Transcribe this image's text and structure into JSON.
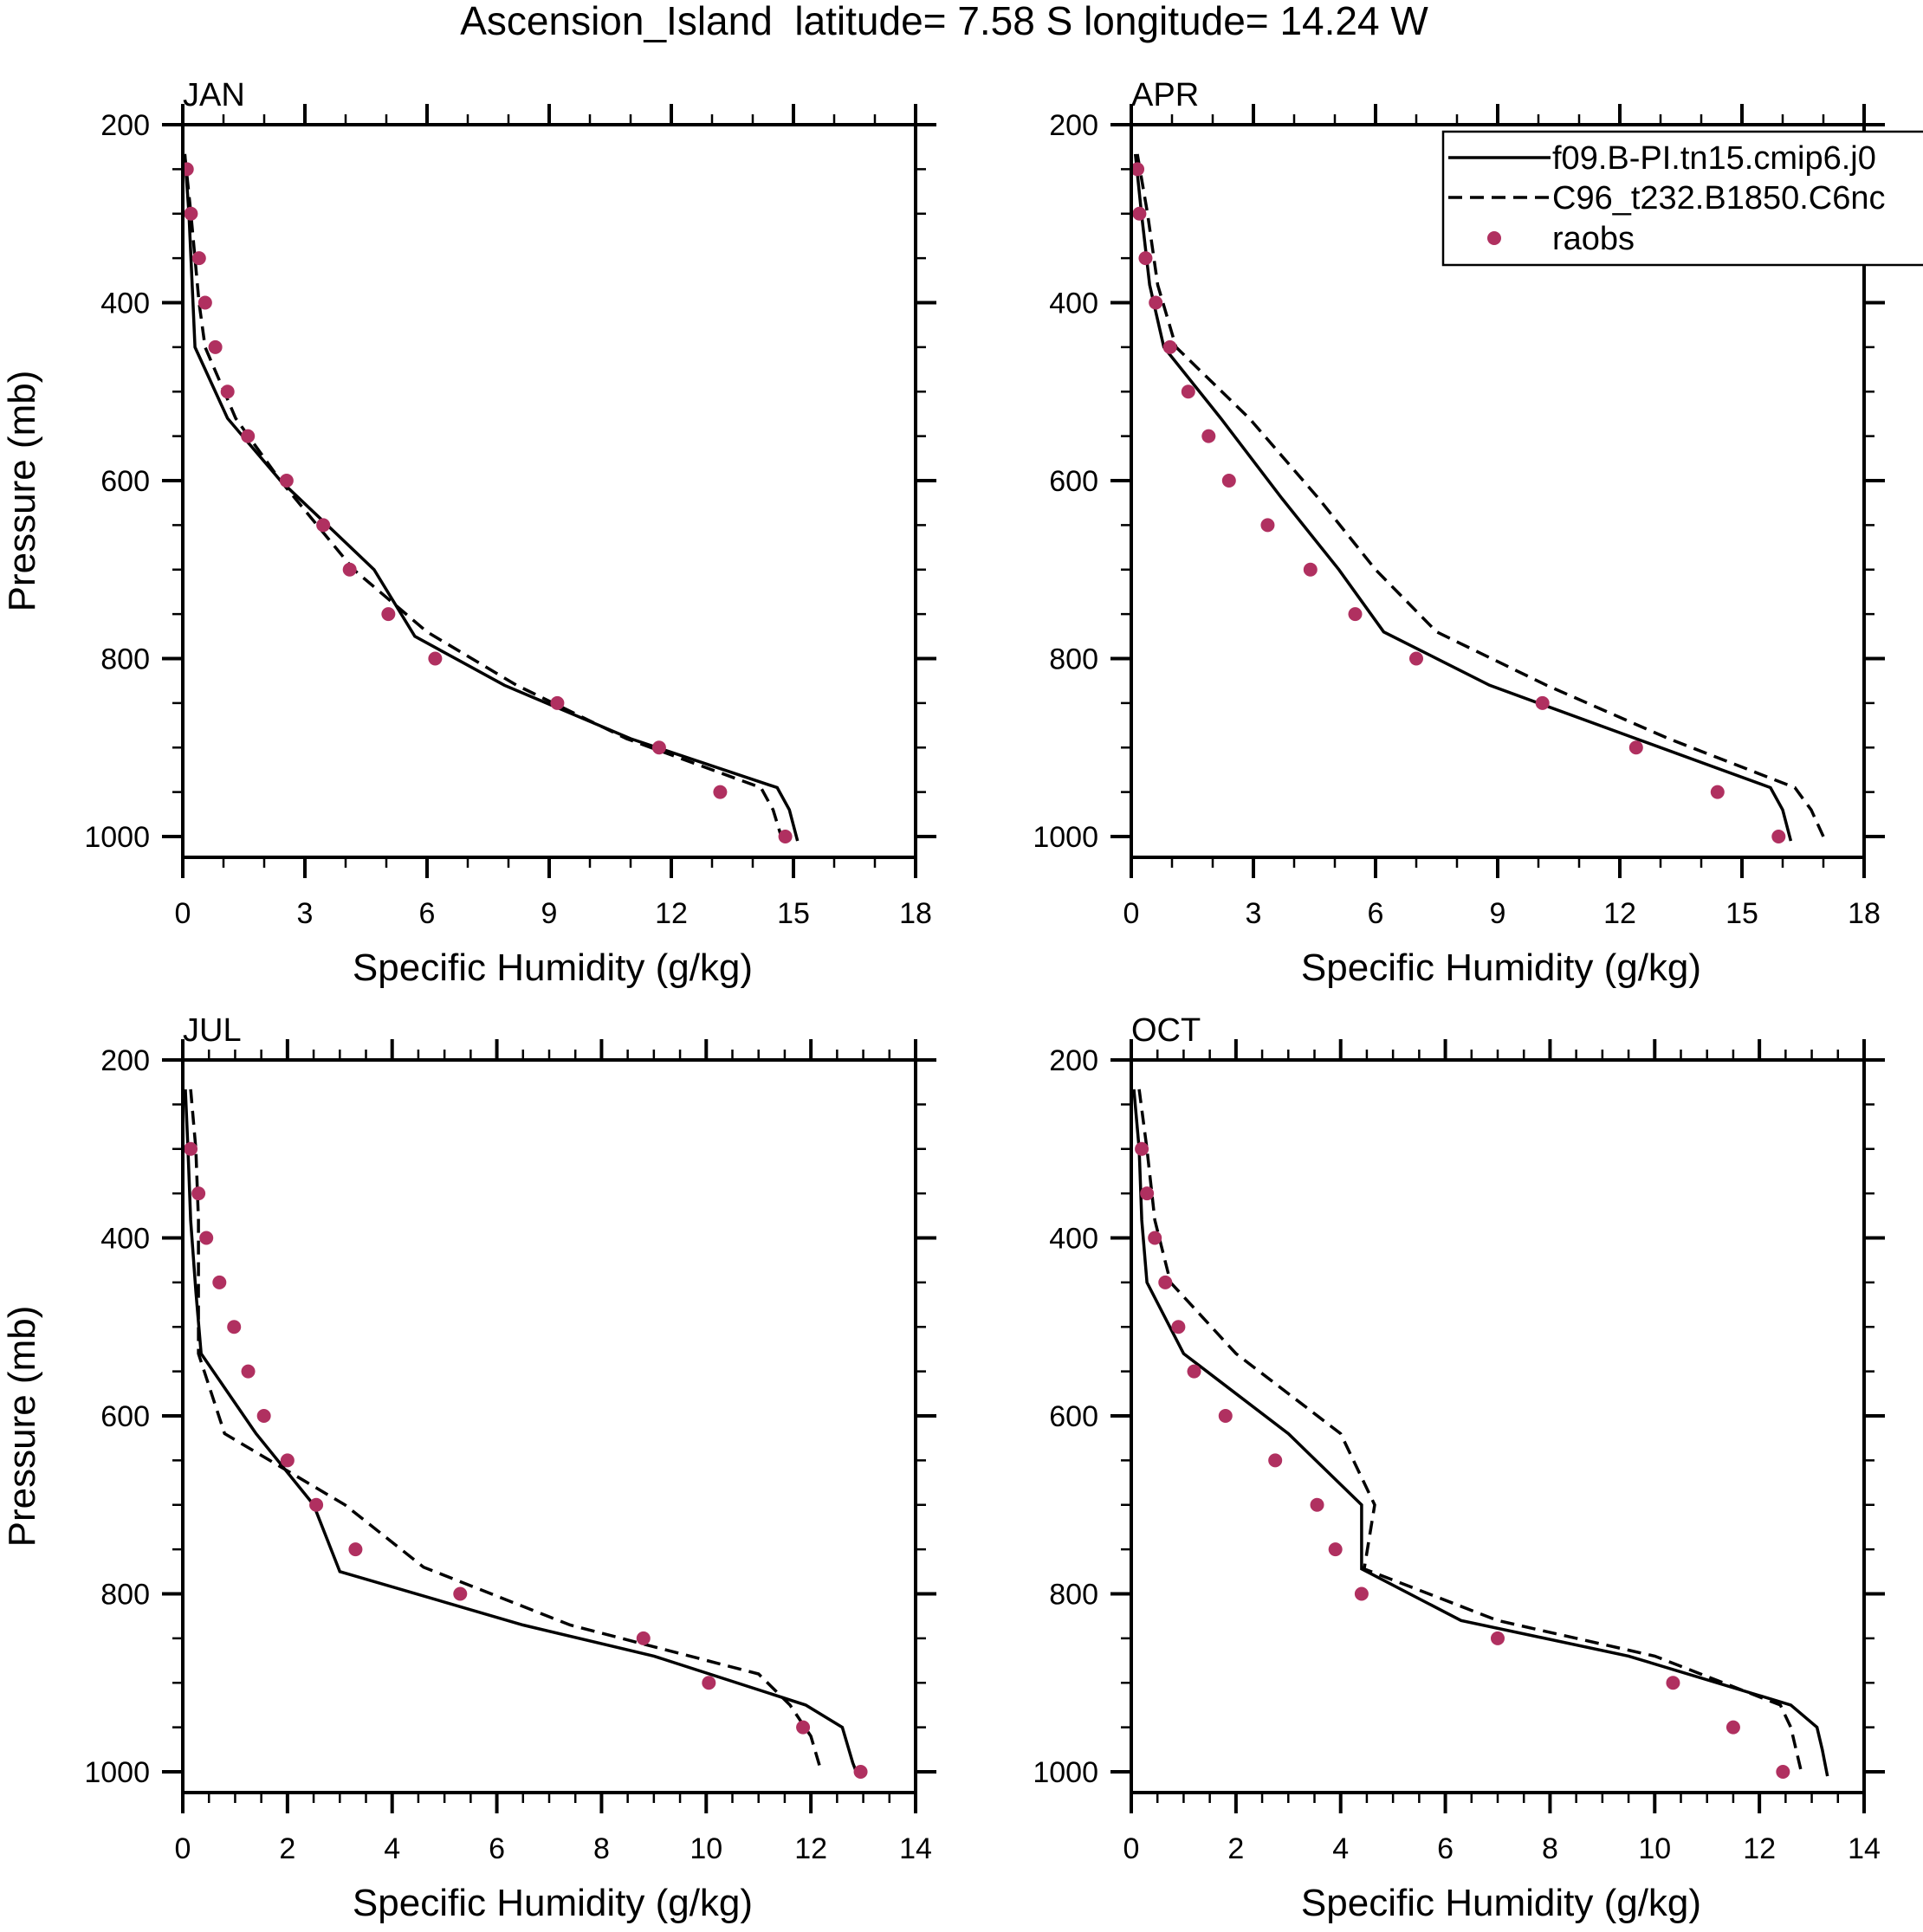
{
  "figure": {
    "title": "Ascension_Island  latitude= 7.58 S longitude= 14.24 W"
  },
  "legend": {
    "placement": "top-right of APR panel",
    "entries": [
      {
        "label": "f09.B-PI.tn15.cmip6.j0",
        "style": "solid"
      },
      {
        "label": "C96_t232.B1850.C6nc",
        "style": "dashed"
      },
      {
        "label": "raobs",
        "style": "marker"
      }
    ]
  },
  "colors": {
    "model_line": "#000000",
    "obs_marker": "#b03060"
  },
  "chart_data": [
    {
      "type": "line",
      "panel": "JAN",
      "title": "JAN",
      "xlabel": "Specific Humidity (g/kg)",
      "ylabel": "Pressure (mb)",
      "xlim": [
        0,
        18
      ],
      "ylim": [
        200,
        1023
      ],
      "y_inverted": true,
      "xticks": [
        0,
        3,
        6,
        9,
        12,
        15,
        18
      ],
      "yticks": [
        200,
        400,
        600,
        800,
        1000
      ],
      "series": [
        {
          "name": "f09.B-PI.tn15.cmip6.j0",
          "style": "solid",
          "p": [
            233,
            300,
            400,
            450,
            530,
            600,
            700,
            775,
            830,
            890,
            945,
            970,
            1005
          ],
          "q": [
            0.05,
            0.15,
            0.25,
            0.3,
            1.1,
            2.4,
            4.7,
            5.7,
            7.9,
            11.0,
            14.6,
            14.9,
            15.1
          ]
        },
        {
          "name": "C96_t232.B1850.C6nc",
          "style": "dashed",
          "p": [
            233,
            300,
            400,
            450,
            530,
            600,
            700,
            770,
            830,
            890,
            945,
            970,
            1000
          ],
          "q": [
            0.05,
            0.2,
            0.4,
            0.55,
            1.3,
            2.4,
            4.2,
            6.0,
            8.2,
            10.9,
            14.2,
            14.5,
            14.7
          ]
        },
        {
          "name": "raobs",
          "style": "marker",
          "p": [
            250,
            300,
            350,
            400,
            450,
            500,
            550,
            600,
            650,
            700,
            750,
            800,
            850,
            900,
            950,
            1000
          ],
          "q": [
            0.1,
            0.2,
            0.4,
            0.55,
            0.8,
            1.1,
            1.6,
            2.55,
            3.45,
            4.1,
            5.05,
            6.2,
            9.2,
            11.7,
            13.2,
            14.8
          ]
        }
      ]
    },
    {
      "type": "line",
      "panel": "APR",
      "title": "APR",
      "xlabel": "Specific Humidity (g/kg)",
      "ylabel": "",
      "xlim": [
        0,
        18
      ],
      "ylim": [
        200,
        1023
      ],
      "y_inverted": true,
      "xticks": [
        0,
        3,
        6,
        9,
        12,
        15,
        18
      ],
      "yticks": [
        200,
        400,
        600,
        800,
        1000
      ],
      "series": [
        {
          "name": "f09.B-PI.tn15.cmip6.j0",
          "style": "solid",
          "p": [
            233,
            300,
            380,
            450,
            530,
            620,
            700,
            770,
            830,
            890,
            945,
            970,
            1005
          ],
          "q": [
            0.1,
            0.25,
            0.45,
            0.8,
            2.2,
            3.7,
            5.1,
            6.2,
            8.8,
            12.4,
            15.7,
            16.0,
            16.2
          ]
        },
        {
          "name": "C96_t232.B1850.C6nc",
          "style": "dashed",
          "p": [
            233,
            300,
            380,
            450,
            530,
            620,
            700,
            770,
            830,
            890,
            945,
            970,
            1000
          ],
          "q": [
            0.15,
            0.4,
            0.65,
            1.1,
            2.9,
            4.6,
            6.0,
            7.5,
            10.2,
            13.2,
            16.3,
            16.7,
            17.0
          ]
        },
        {
          "name": "raobs",
          "style": "marker",
          "p": [
            250,
            300,
            350,
            400,
            450,
            500,
            550,
            600,
            650,
            700,
            750,
            800,
            850,
            900,
            950,
            1000
          ],
          "q": [
            0.15,
            0.2,
            0.35,
            0.6,
            0.95,
            1.4,
            1.9,
            2.4,
            3.35,
            4.4,
            5.5,
            7.0,
            10.1,
            12.4,
            14.4,
            15.9
          ]
        }
      ]
    },
    {
      "type": "line",
      "panel": "JUL",
      "title": "JUL",
      "xlabel": "Specific Humidity (g/kg)",
      "ylabel": "Pressure (mb)",
      "xlim": [
        0,
        14
      ],
      "ylim": [
        200,
        1023
      ],
      "y_inverted": true,
      "xticks": [
        0,
        2,
        4,
        6,
        8,
        10,
        12,
        14
      ],
      "yticks": [
        200,
        400,
        600,
        800,
        1000
      ],
      "series": [
        {
          "name": "f09.B-PI.tn15.cmip6.j0",
          "style": "solid",
          "p": [
            233,
            300,
            380,
            460,
            530,
            620,
            700,
            775,
            835,
            870,
            925,
            950,
            990,
            1005
          ],
          "q": [
            0.05,
            0.1,
            0.15,
            0.25,
            0.35,
            1.4,
            2.5,
            3.0,
            6.5,
            9.0,
            11.9,
            12.6,
            12.8,
            12.9
          ]
        },
        {
          "name": "C96_t232.B1850.C6nc",
          "style": "dashed",
          "p": [
            233,
            300,
            380,
            460,
            530,
            620,
            700,
            770,
            835,
            890,
            925,
            960,
            1000
          ],
          "q": [
            0.15,
            0.25,
            0.3,
            0.3,
            0.3,
            0.8,
            3.1,
            4.6,
            7.4,
            11.0,
            11.6,
            12.0,
            12.2
          ]
        },
        {
          "name": "raobs",
          "style": "marker",
          "p": [
            300,
            350,
            400,
            450,
            500,
            550,
            600,
            650,
            700,
            750,
            800,
            850,
            900,
            950,
            1000
          ],
          "q": [
            0.15,
            0.3,
            0.45,
            0.7,
            0.98,
            1.25,
            1.55,
            2.0,
            2.55,
            3.3,
            5.3,
            8.8,
            10.05,
            11.85,
            12.95
          ]
        }
      ]
    },
    {
      "type": "line",
      "panel": "OCT",
      "title": "OCT",
      "xlabel": "Specific Humidity (g/kg)",
      "ylabel": "",
      "xlim": [
        0,
        14
      ],
      "ylim": [
        200,
        1023
      ],
      "y_inverted": true,
      "xticks": [
        0,
        2,
        4,
        6,
        8,
        10,
        12,
        14
      ],
      "yticks": [
        200,
        400,
        600,
        800,
        1000
      ],
      "series": [
        {
          "name": "f09.B-PI.tn15.cmip6.j0",
          "style": "solid",
          "p": [
            233,
            300,
            380,
            450,
            530,
            620,
            700,
            772,
            830,
            870,
            925,
            950,
            975,
            1005
          ],
          "q": [
            0.05,
            0.15,
            0.2,
            0.3,
            1.0,
            3.0,
            4.4,
            4.4,
            6.3,
            9.5,
            12.6,
            13.1,
            13.2,
            13.3
          ]
        },
        {
          "name": "C96_t232.B1850.C6nc",
          "style": "dashed",
          "p": [
            233,
            300,
            380,
            450,
            530,
            620,
            700,
            772,
            830,
            870,
            925,
            950,
            1000
          ],
          "q": [
            0.15,
            0.3,
            0.45,
            0.75,
            2.0,
            4.0,
            4.65,
            4.45,
            7.0,
            10.0,
            12.4,
            12.6,
            12.8
          ]
        },
        {
          "name": "raobs",
          "style": "marker",
          "p": [
            300,
            350,
            400,
            450,
            500,
            550,
            600,
            650,
            700,
            750,
            800,
            850,
            900,
            950,
            1000
          ],
          "q": [
            0.2,
            0.3,
            0.45,
            0.65,
            0.9,
            1.2,
            1.8,
            2.75,
            3.55,
            3.9,
            4.4,
            7.0,
            10.35,
            11.5,
            12.45
          ]
        }
      ]
    }
  ]
}
